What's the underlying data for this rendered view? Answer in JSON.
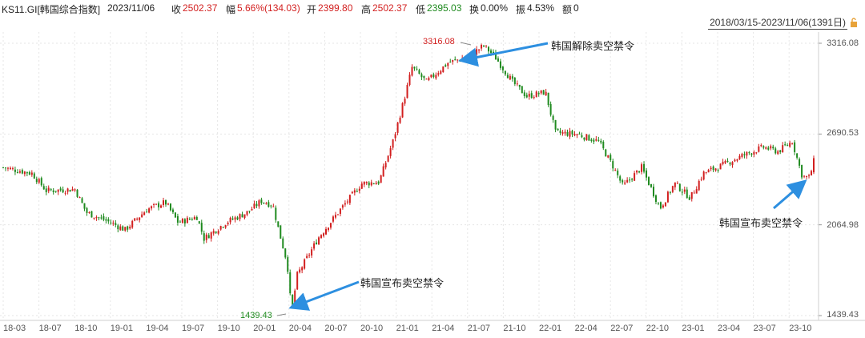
{
  "header": {
    "code": "KS11.GI[韩国综合指数]",
    "date": "2023/11/06",
    "close_label": "收",
    "close_value": "2502.37",
    "change_label": "幅",
    "change_value": "5.66%(134.03)",
    "open_label": "开",
    "open_value": "2399.80",
    "high_label": "高",
    "high_value": "2502.37",
    "low_label": "低",
    "low_value": "2395.03",
    "turnover_label": "换",
    "turnover_value": "0.00%",
    "amplitude_label": "振",
    "amplitude_value": "4.53%",
    "amount_label": "额",
    "amount_value": "0"
  },
  "range": "2018/03/15-2023/11/06(1391日)",
  "colors": {
    "up": "#d21f1f",
    "down": "#1f8a1f",
    "arrow": "#2d8fe0",
    "grid": "#e6e6e6"
  },
  "annotations": {
    "lift_ban": "韩国解除卖空禁令",
    "ban_2020": "韩国宣布卖空禁令",
    "ban_2023": "韩国宣布卖空禁令"
  },
  "marks": {
    "max": "3316.08",
    "min": "1439.43"
  },
  "chart_data": {
    "type": "candlestick",
    "y_ticks": [
      "3316.08",
      "2690.53",
      "2064.98",
      "1439.43"
    ],
    "ylim": [
      1439.43,
      3316.08
    ],
    "x_ticks": [
      "18-03",
      "18-07",
      "18-10",
      "19-01",
      "19-04",
      "19-07",
      "19-10",
      "20-01",
      "20-04",
      "20-07",
      "20-10",
      "21-01",
      "21-04",
      "21-07",
      "21-10",
      "22-01",
      "22-04",
      "22-07",
      "22-10",
      "23-01",
      "23-04",
      "23-07",
      "23-10"
    ],
    "months_span": [
      2018.2,
      2023.85
    ],
    "anchors": [
      [
        2018.2,
        2460
      ],
      [
        2018.4,
        2420
      ],
      [
        2018.5,
        2300
      ],
      [
        2018.7,
        2310
      ],
      [
        2018.78,
        2150
      ],
      [
        2018.95,
        2080
      ],
      [
        2019.05,
        2030
      ],
      [
        2019.2,
        2170
      ],
      [
        2019.33,
        2220
      ],
      [
        2019.42,
        2080
      ],
      [
        2019.55,
        2120
      ],
      [
        2019.6,
        1970
      ],
      [
        2019.75,
        2080
      ],
      [
        2019.9,
        2150
      ],
      [
        2020.0,
        2230
      ],
      [
        2020.08,
        2200
      ],
      [
        2020.12,
        2030
      ],
      [
        2020.18,
        1800
      ],
      [
        2020.21,
        1460
      ],
      [
        2020.25,
        1720
      ],
      [
        2020.4,
        1980
      ],
      [
        2020.55,
        2170
      ],
      [
        2020.7,
        2350
      ],
      [
        2020.82,
        2360
      ],
      [
        2020.92,
        2650
      ],
      [
        2021.0,
        2950
      ],
      [
        2021.05,
        3150
      ],
      [
        2021.15,
        3050
      ],
      [
        2021.3,
        3180
      ],
      [
        2021.45,
        3230
      ],
      [
        2021.55,
        3300
      ],
      [
        2021.63,
        3220
      ],
      [
        2021.75,
        3050
      ],
      [
        2021.85,
        2950
      ],
      [
        2021.98,
        2980
      ],
      [
        2022.05,
        2700
      ],
      [
        2022.2,
        2690
      ],
      [
        2022.35,
        2640
      ],
      [
        2022.45,
        2470
      ],
      [
        2022.52,
        2330
      ],
      [
        2022.65,
        2460
      ],
      [
        2022.78,
        2180
      ],
      [
        2022.88,
        2350
      ],
      [
        2022.99,
        2250
      ],
      [
        2023.08,
        2420
      ],
      [
        2023.2,
        2470
      ],
      [
        2023.35,
        2540
      ],
      [
        2023.5,
        2600
      ],
      [
        2023.6,
        2570
      ],
      [
        2023.7,
        2640
      ],
      [
        2023.77,
        2400
      ],
      [
        2023.82,
        2390
      ],
      [
        2023.85,
        2502
      ]
    ]
  }
}
